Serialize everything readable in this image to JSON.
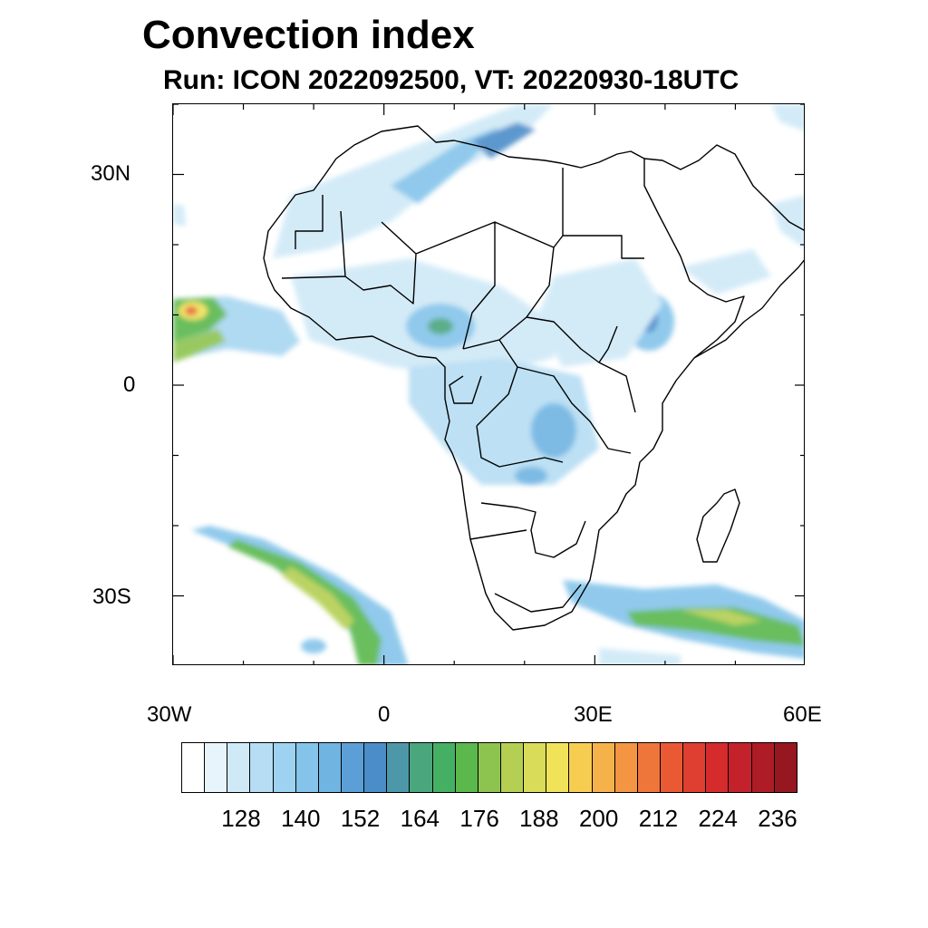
{
  "title": "Convection index",
  "subtitle": "Run: ICON 2022092500,  VT: 20220930-18UTC",
  "map": {
    "lon_range": [
      -30,
      60
    ],
    "lat_range": [
      -40,
      40
    ],
    "lat_ticks": [
      {
        "value": 30,
        "label": "30N"
      },
      {
        "value": 0,
        "label": "0"
      },
      {
        "value": -30,
        "label": "30S"
      }
    ],
    "lon_ticks": [
      {
        "value": -30,
        "label": "30W"
      },
      {
        "value": 0,
        "label": "0"
      },
      {
        "value": 30,
        "label": "30E"
      },
      {
        "value": 60,
        "label": "60E"
      }
    ]
  },
  "colorbar": {
    "colors": [
      "#ffffff",
      "#e8f4fb",
      "#cfe9f7",
      "#b6ddf3",
      "#9dd2f0",
      "#84c4ea",
      "#70b4e2",
      "#5b9fd6",
      "#4b8dc9",
      "#4d98a8",
      "#4aa67d",
      "#45b063",
      "#5ab84d",
      "#8dc450",
      "#b4cf52",
      "#d8dc58",
      "#f0e35a",
      "#f7cd51",
      "#f6b24a",
      "#f39542",
      "#ef763a",
      "#e95a34",
      "#df3f30",
      "#d52b2d",
      "#c3222c",
      "#ae1c25",
      "#961720"
    ],
    "tick_labels": [
      "128",
      "140",
      "152",
      "164",
      "176",
      "188",
      "200",
      "212",
      "224",
      "236"
    ]
  }
}
